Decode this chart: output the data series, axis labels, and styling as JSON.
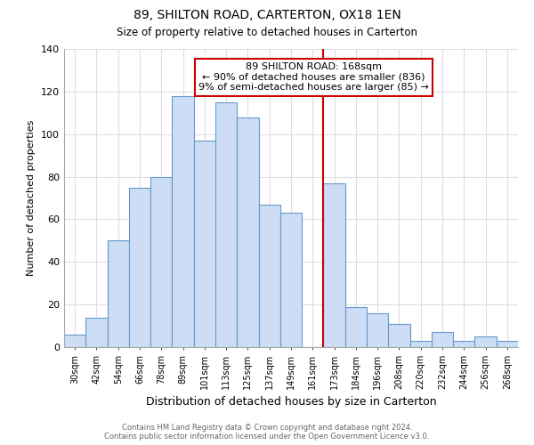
{
  "title": "89, SHILTON ROAD, CARTERTON, OX18 1EN",
  "subtitle": "Size of property relative to detached houses in Carterton",
  "xlabel": "Distribution of detached houses by size in Carterton",
  "ylabel": "Number of detached properties",
  "bin_labels": [
    "30sqm",
    "42sqm",
    "54sqm",
    "66sqm",
    "78sqm",
    "89sqm",
    "101sqm",
    "113sqm",
    "125sqm",
    "137sqm",
    "149sqm",
    "161sqm",
    "173sqm",
    "184sqm",
    "196sqm",
    "208sqm",
    "220sqm",
    "232sqm",
    "244sqm",
    "256sqm",
    "268sqm"
  ],
  "bar_heights": [
    6,
    14,
    50,
    75,
    80,
    118,
    97,
    115,
    108,
    67,
    63,
    0,
    77,
    19,
    16,
    11,
    3,
    7,
    3,
    5,
    3
  ],
  "bar_color": "#ccddf5",
  "bar_edge_color": "#6699cc",
  "vline_x_index": 12,
  "vline_color": "#cc0000",
  "annotation_title": "89 SHILTON ROAD: 168sqm",
  "annotation_line1": "← 90% of detached houses are smaller (836)",
  "annotation_line2": "9% of semi-detached houses are larger (85) →",
  "annotation_box_color": "#ffffff",
  "annotation_box_edge_color": "#cc0000",
  "ylim": [
    0,
    140
  ],
  "yticks": [
    0,
    20,
    40,
    60,
    80,
    100,
    120,
    140
  ],
  "footer_line1": "Contains HM Land Registry data © Crown copyright and database right 2024.",
  "footer_line2": "Contains public sector information licensed under the Open Government Licence v3.0.",
  "background_color": "#ffffff",
  "grid_color": "#dddddd"
}
